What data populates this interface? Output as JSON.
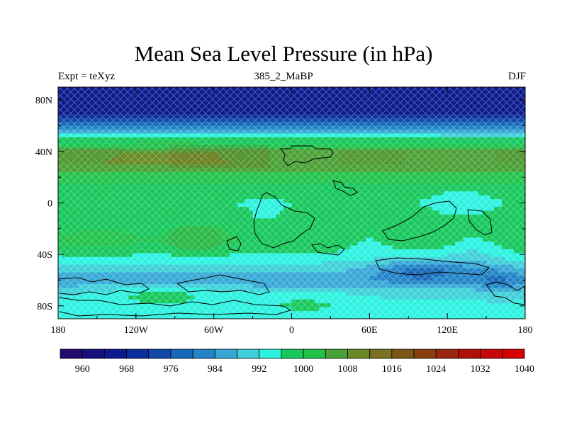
{
  "title": "Mean Sea Level Pressure (in hPa)",
  "left_string": "Expt = teXyz",
  "center_string": "385_2_MaBP",
  "right_string": "DJF",
  "lat_ticks": [
    "80N",
    "40N",
    "0",
    "40S",
    "80S"
  ],
  "lon_ticks": [
    "180",
    "120W",
    "60W",
    "0",
    "60E",
    "120E",
    "180"
  ],
  "colorbar": {
    "labels": [
      "960",
      "968",
      "976",
      "984",
      "992",
      "1000",
      "1008",
      "1016",
      "1024",
      "1032",
      "1040"
    ],
    "colors": [
      "#230a6e",
      "#16107e",
      "#0c1a8e",
      "#0c2e9c",
      "#0f4aaa",
      "#1668b8",
      "#2184c6",
      "#37a8d6",
      "#3fd0da",
      "#2cf2e0",
      "#16c85c",
      "#22c24a",
      "#4aa036",
      "#6a8a26",
      "#7a7020",
      "#7c5616",
      "#8a3e10",
      "#9a260c",
      "#ae1008",
      "#c80808",
      "#d40000"
    ]
  },
  "chart_data": {
    "type": "heatmap",
    "title": "Mean Sea Level Pressure (in hPa)",
    "variable": "Mean Sea Level Pressure",
    "units": "hPa",
    "experiment": "teXyz",
    "period": "385_2_MaBP",
    "season": "DJF",
    "x_range": [
      -180,
      180
    ],
    "y_range": [
      -90,
      90
    ],
    "contour_levels": [
      960,
      964,
      968,
      972,
      976,
      980,
      984,
      988,
      992,
      996,
      1000,
      1004,
      1008,
      1012,
      1016,
      1020,
      1024,
      1028,
      1032,
      1036,
      1040
    ],
    "zonal_profile": {
      "lat": [
        90,
        80,
        70,
        60,
        50,
        40,
        30,
        20,
        10,
        0,
        -10,
        -20,
        -30,
        -40,
        -50,
        -60,
        -70,
        -80,
        -90
      ],
      "mslp": [
        966,
        965,
        967,
        980,
        996,
        1007,
        1008,
        1002,
        997,
        996,
        997,
        999,
        1000,
        996,
        990,
        985,
        991,
        993,
        994
      ]
    }
  }
}
